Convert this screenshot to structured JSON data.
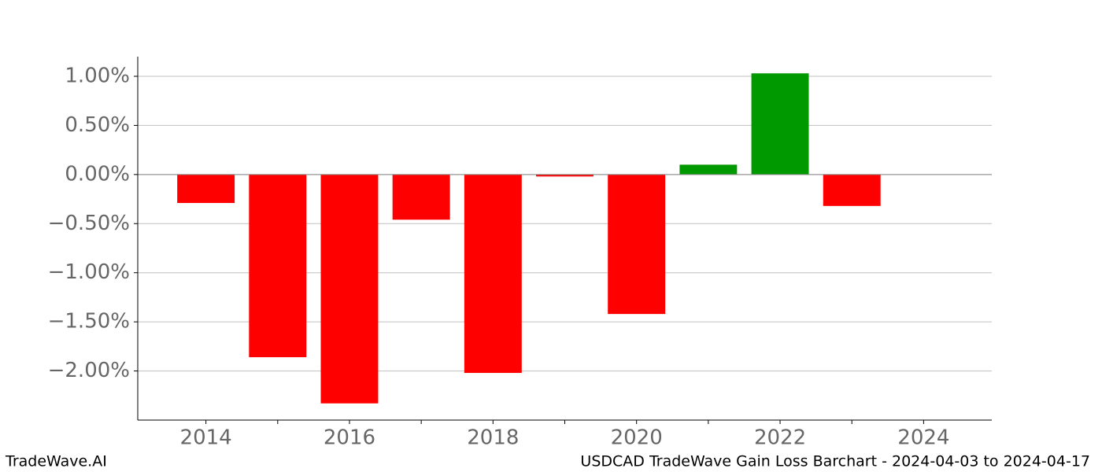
{
  "chart_data": {
    "type": "bar",
    "title": "USDCAD TradeWave Gain Loss Barchart - 2024-04-03 to 2024-04-17",
    "watermark": "TradeWave.AI",
    "x": [
      2014,
      2015,
      2016,
      2017,
      2018,
      2019,
      2020,
      2021,
      2022,
      2023
    ],
    "values": [
      -0.29,
      -1.86,
      -2.33,
      -0.46,
      -2.02,
      -0.02,
      -1.42,
      0.1,
      1.03,
      -0.32
    ],
    "colors": [
      "#ff0000",
      "#ff0000",
      "#ff0000",
      "#ff0000",
      "#ff0000",
      "#ff0000",
      "#ff0000",
      "#009900",
      "#009900",
      "#ff0000"
    ],
    "xlim": [
      2013.05,
      2024.95
    ],
    "xticks": [
      2014,
      2016,
      2018,
      2020,
      2022,
      2024
    ],
    "xminorticks": [
      2015,
      2017,
      2019,
      2021,
      2023
    ],
    "ylim": [
      -2.5,
      1.2
    ],
    "yticks": [
      {
        "value": -2,
        "label": "−2.00%"
      },
      {
        "value": -1.5,
        "label": "−1.50%"
      },
      {
        "value": -1,
        "label": "−1.00%"
      },
      {
        "value": -0.5,
        "label": "−0.50%"
      },
      {
        "value": 0,
        "label": "0.00%"
      },
      {
        "value": 0.5,
        "label": "0.50%"
      },
      {
        "value": 1,
        "label": "1.00%"
      }
    ],
    "grid": true
  }
}
